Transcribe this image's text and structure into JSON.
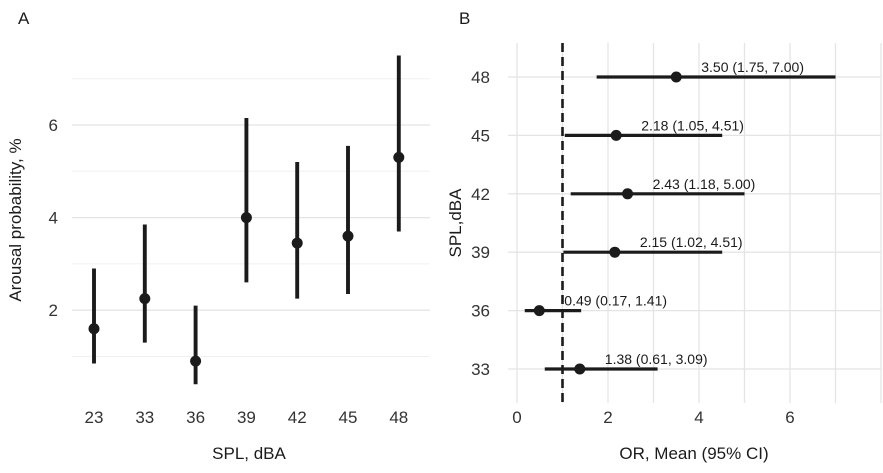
{
  "figure": {
    "panels": [
      {
        "tag": "A"
      },
      {
        "tag": "B"
      }
    ]
  },
  "colors": {
    "ink": "#1b1b1b",
    "tick_text": "#333333",
    "title_text": "#1b1b1b",
    "grid_major": "#e4e4e4",
    "grid_minor": "#f0f0f0",
    "background": "#ffffff"
  },
  "chart_data": [
    {
      "panel": "A",
      "type": "scatter",
      "subtype": "point-with-ci-range",
      "title": "",
      "xlabel": "SPL, dBA",
      "ylabel": "Arousal probability, %",
      "categories": [
        "23",
        "33",
        "36",
        "39",
        "42",
        "45",
        "48"
      ],
      "series": [
        {
          "name": "mean_arousal_probability",
          "values": [
            1.6,
            2.25,
            0.9,
            4.0,
            3.45,
            3.6,
            5.3
          ]
        },
        {
          "name": "ci_low",
          "values": [
            0.85,
            1.3,
            0.4,
            2.6,
            2.25,
            2.35,
            3.7
          ]
        },
        {
          "name": "ci_high",
          "values": [
            2.9,
            3.85,
            2.1,
            6.15,
            5.2,
            5.55,
            7.5
          ]
        }
      ],
      "yticks": [
        2,
        4,
        6
      ],
      "grid_major_y": [
        2,
        4,
        6
      ],
      "grid_minor_y": [
        1,
        3,
        5,
        7
      ],
      "ylim": [
        0.2,
        7.6
      ],
      "grid": "horizontal-only",
      "legend": "none"
    },
    {
      "panel": "B",
      "type": "scatter",
      "subtype": "forest",
      "title": "",
      "xlabel": "OR, Mean (95% CI)",
      "ylabel": "SPL,dBA",
      "categories": [
        "48",
        "45",
        "42",
        "39",
        "36",
        "33"
      ],
      "rows": [
        {
          "category": "48",
          "mean": 3.5,
          "low": 1.75,
          "high": 7.0,
          "label": "3.50 (1.75, 7.00)"
        },
        {
          "category": "45",
          "mean": 2.18,
          "low": 1.05,
          "high": 4.51,
          "label": "2.18 (1.05, 4.51)"
        },
        {
          "category": "42",
          "mean": 2.43,
          "low": 1.18,
          "high": 5.0,
          "label": "2.43 (1.18, 5.00)"
        },
        {
          "category": "39",
          "mean": 2.15,
          "low": 1.02,
          "high": 4.51,
          "label": "2.15 (1.02, 4.51)"
        },
        {
          "category": "36",
          "mean": 0.49,
          "low": 0.17,
          "high": 1.41,
          "label": "0.49 (0.17, 1.41)"
        },
        {
          "category": "33",
          "mean": 1.38,
          "low": 0.61,
          "high": 3.09,
          "label": "1.38 (0.61, 3.09)"
        }
      ],
      "xticks": [
        0,
        2,
        4,
        6
      ],
      "grid_x": [
        0,
        1,
        2,
        3,
        4,
        5,
        6,
        7,
        8
      ],
      "reference_line_x": 1,
      "reference_line_style": "dashed",
      "xlim": [
        -0.2,
        8.0
      ],
      "grid": "both",
      "legend": "none"
    }
  ]
}
